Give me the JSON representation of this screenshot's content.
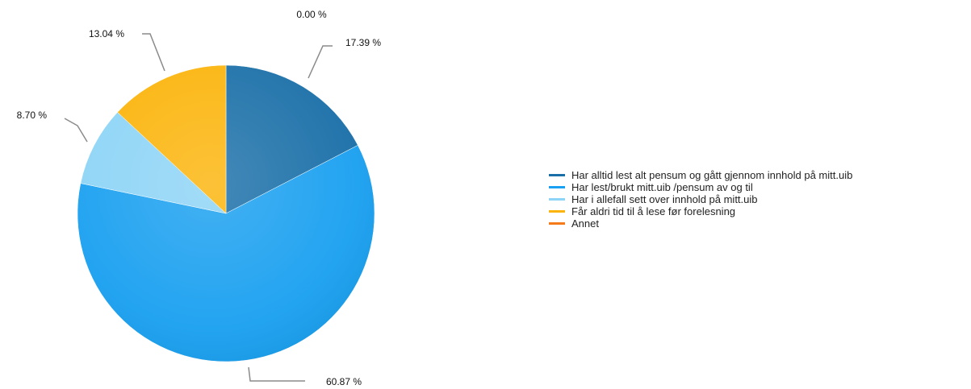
{
  "chart_data": {
    "type": "pie",
    "categories": [
      "Har alltid lest alt pensum og gått gjennom innhold på mitt.uib",
      "Har lest/brukt mitt.uib /pensum av og til",
      "Har i allefall sett over innhold på mitt.uib",
      "Får aldri tid til å lese før forelesning",
      "Annet"
    ],
    "values": [
      17.39,
      60.87,
      8.7,
      13.04,
      0.0
    ],
    "value_labels": [
      "17.39 %",
      "60.87 %",
      "8.70 %",
      "13.04 %",
      "0.00 %"
    ],
    "colors": [
      "#1a6fa8",
      "#1aa0f0",
      "#8dd4f6",
      "#fbb40b",
      "#f57a1a"
    ],
    "legend_position": "right"
  }
}
